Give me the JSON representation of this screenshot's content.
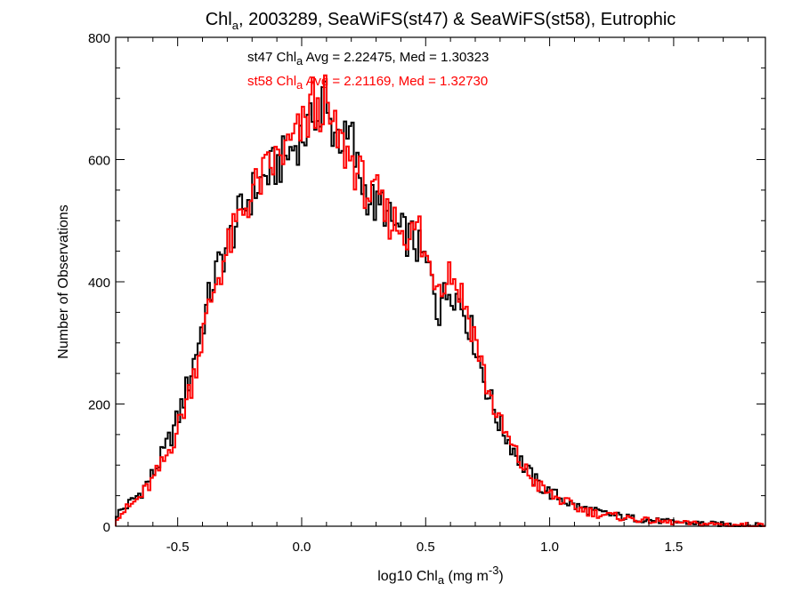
{
  "chart_data": {
    "type": "step-histogram",
    "title": {
      "prefix": "Chl",
      "subscript": "a",
      "suffix": ", 2003289, SeaWiFS(st47) & SeaWiFS(st58), Eutrophic"
    },
    "xlabel": {
      "prefix": "log10 Chl",
      "subscript": "a",
      "middle": " (mg m",
      "superscript": "-3",
      "suffix": ")"
    },
    "ylabel": "Number of Observations",
    "xlim": [
      -0.75,
      1.87
    ],
    "ylim": [
      0,
      800
    ],
    "x_ticks": [
      -0.5,
      0.0,
      0.5,
      1.0,
      1.5
    ],
    "x_tick_labels": [
      "-0.5",
      "0.0",
      "0.5",
      "1.0",
      "1.5"
    ],
    "y_ticks": [
      0,
      200,
      400,
      600,
      800
    ],
    "y_tick_labels": [
      "0",
      "200",
      "400",
      "600",
      "800"
    ],
    "bin_width": 0.01,
    "series": [
      {
        "stat_label": {
          "prefix": "st47 Chl",
          "subscript": "a",
          "suffix": " Avg = 2.22475, Med = 1.30323"
        },
        "color": "#000000",
        "profile": [
          [
            -0.75,
            18
          ],
          [
            -0.7,
            35
          ],
          [
            -0.65,
            55
          ],
          [
            -0.6,
            85
          ],
          [
            -0.55,
            125
          ],
          [
            -0.5,
            175
          ],
          [
            -0.45,
            245
          ],
          [
            -0.4,
            330
          ],
          [
            -0.35,
            410
          ],
          [
            -0.3,
            460
          ],
          [
            -0.25,
            510
          ],
          [
            -0.2,
            545
          ],
          [
            -0.15,
            570
          ],
          [
            -0.1,
            590
          ],
          [
            -0.05,
            610
          ],
          [
            0.0,
            640
          ],
          [
            0.05,
            655
          ],
          [
            0.1,
            665
          ],
          [
            0.15,
            640
          ],
          [
            0.2,
            615
          ],
          [
            0.25,
            555
          ],
          [
            0.3,
            520
          ],
          [
            0.35,
            500
          ],
          [
            0.4,
            480
          ],
          [
            0.45,
            470
          ],
          [
            0.5,
            430
          ],
          [
            0.55,
            380
          ],
          [
            0.6,
            395
          ],
          [
            0.65,
            360
          ],
          [
            0.7,
            300
          ],
          [
            0.75,
            220
          ],
          [
            0.8,
            165
          ],
          [
            0.85,
            130
          ],
          [
            0.9,
            95
          ],
          [
            0.95,
            70
          ],
          [
            1.0,
            55
          ],
          [
            1.05,
            45
          ],
          [
            1.1,
            33
          ],
          [
            1.2,
            22
          ],
          [
            1.3,
            15
          ],
          [
            1.4,
            10
          ],
          [
            1.5,
            7
          ],
          [
            1.6,
            5
          ],
          [
            1.7,
            3
          ],
          [
            1.87,
            1
          ]
        ],
        "offset": [
          [
            0.05,
            40
          ],
          [
            0.09,
            60
          ],
          [
            0.2,
            35
          ],
          [
            0.33,
            25
          ],
          [
            0.55,
            -40
          ],
          [
            0.58,
            -20
          ]
        ]
      },
      {
        "stat_label": {
          "prefix": "st58 Chl",
          "subscript": "a",
          "suffix": " Avg = 2.21169, Med = 1.32730"
        },
        "color": "#ff0000",
        "profile": [
          [
            -0.75,
            15
          ],
          [
            -0.7,
            30
          ],
          [
            -0.65,
            48
          ],
          [
            -0.6,
            75
          ],
          [
            -0.55,
            110
          ],
          [
            -0.5,
            160
          ],
          [
            -0.45,
            225
          ],
          [
            -0.4,
            310
          ],
          [
            -0.35,
            395
          ],
          [
            -0.3,
            450
          ],
          [
            -0.25,
            505
          ],
          [
            -0.2,
            545
          ],
          [
            -0.15,
            575
          ],
          [
            -0.1,
            600
          ],
          [
            -0.05,
            620
          ],
          [
            0.0,
            650
          ],
          [
            0.05,
            670
          ],
          [
            0.1,
            670
          ],
          [
            0.15,
            630
          ],
          [
            0.2,
            600
          ],
          [
            0.25,
            560
          ],
          [
            0.3,
            525
          ],
          [
            0.35,
            505
          ],
          [
            0.4,
            490
          ],
          [
            0.45,
            475
          ],
          [
            0.5,
            440
          ],
          [
            0.55,
            400
          ],
          [
            0.6,
            415
          ],
          [
            0.65,
            375
          ],
          [
            0.7,
            310
          ],
          [
            0.75,
            225
          ],
          [
            0.8,
            168
          ],
          [
            0.85,
            128
          ],
          [
            0.9,
            92
          ],
          [
            0.95,
            68
          ],
          [
            1.0,
            52
          ],
          [
            1.05,
            42
          ],
          [
            1.1,
            31
          ],
          [
            1.2,
            20
          ],
          [
            1.3,
            14
          ],
          [
            1.4,
            9
          ],
          [
            1.5,
            6
          ],
          [
            1.6,
            4
          ],
          [
            1.7,
            3
          ],
          [
            1.87,
            1
          ]
        ],
        "offset": [
          [
            0.04,
            50
          ],
          [
            0.09,
            40
          ],
          [
            0.31,
            30
          ],
          [
            0.47,
            45
          ],
          [
            0.6,
            10
          ]
        ]
      }
    ]
  }
}
